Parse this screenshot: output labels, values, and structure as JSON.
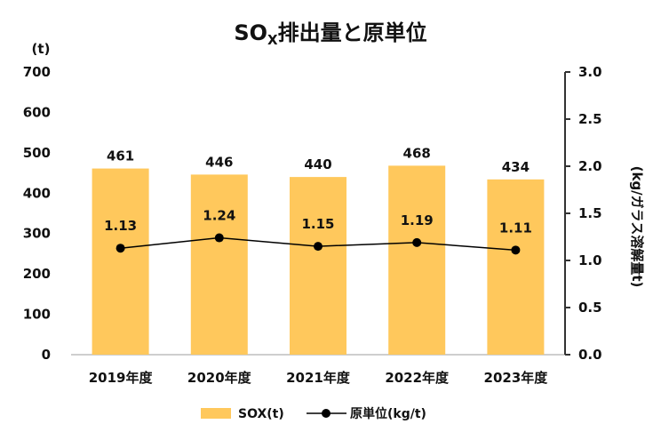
{
  "chart_data": {
    "type": "bar+line",
    "title_main": "SO",
    "title_sub": "X",
    "title_rest": "排出量と原単位",
    "categories": [
      "2019年度",
      "2020年度",
      "2021年度",
      "2022年度",
      "2023年度"
    ],
    "series": [
      {
        "name": "SOX(t)",
        "type": "bar",
        "axis": "left",
        "values": [
          461,
          446,
          440,
          468,
          434
        ]
      },
      {
        "name": "原単位(kg/t)",
        "type": "line",
        "axis": "right",
        "values": [
          1.13,
          1.24,
          1.15,
          1.19,
          1.11
        ]
      }
    ],
    "left_axis": {
      "unit": "(t)",
      "ylim": [
        0,
        700
      ],
      "ticks": [
        "0",
        "100",
        "200",
        "300",
        "400",
        "500",
        "600",
        "700"
      ]
    },
    "right_axis": {
      "label": "(kg/ガラス溶解量t)",
      "ylim": [
        0,
        3.0
      ],
      "ticks": [
        "0.0",
        "0.5",
        "1.0",
        "1.5",
        "2.0",
        "2.5",
        "3.0"
      ]
    },
    "grid": false,
    "legend_position": "bottom",
    "colors": {
      "bar": "#FFC85C",
      "line": "#000000"
    }
  }
}
